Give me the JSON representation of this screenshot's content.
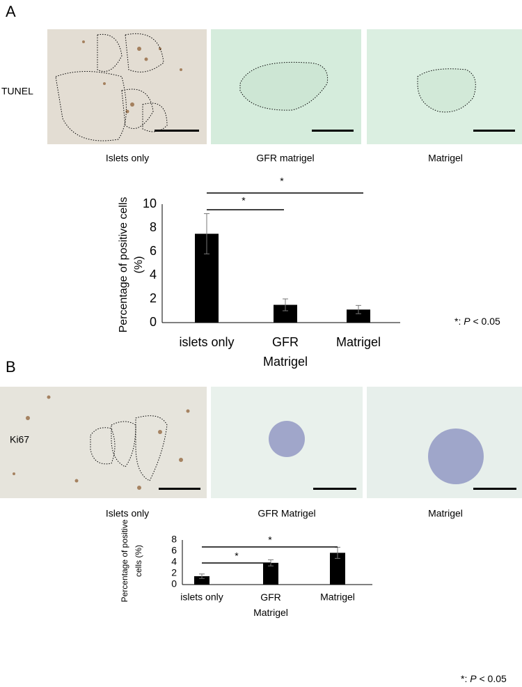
{
  "panels": [
    {
      "label": "A",
      "stain": "TUNEL",
      "captions": [
        "Islets only",
        "GFR matrigel",
        "Matrigel"
      ]
    },
    {
      "label": "B",
      "stain": "Ki67",
      "captions": [
        "Islets only",
        "GFR Matrigel",
        "Matrigel"
      ]
    }
  ],
  "chart_data": [
    {
      "type": "bar",
      "y_label": [
        "Percentage of positive cells",
        "(%)"
      ],
      "categories": [
        "islets only",
        "GFR Matrigel",
        "Matrigel"
      ],
      "values": [
        7.5,
        1.5,
        1.1
      ],
      "errors": [
        1.7,
        0.5,
        0.35
      ],
      "color": "#000000",
      "ylim": [
        0,
        10
      ],
      "yticks": [
        0,
        2,
        4,
        6,
        8,
        10
      ],
      "annotations": [
        "*",
        "*"
      ],
      "note": {
        "prefix": "*:",
        "italic": "P",
        "suffix": "< 0.05"
      }
    },
    {
      "type": "bar",
      "y_label": [
        "Percentage of positive",
        "cells (%)"
      ],
      "categories": [
        "islets only",
        "GFR Matrigel",
        "Matrigel"
      ],
      "values": [
        1.5,
        3.9,
        5.7
      ],
      "errors": [
        0.4,
        0.55,
        1.0
      ],
      "color": "#000000",
      "ylim": [
        0,
        8
      ],
      "yticks": [
        0,
        2,
        4,
        6,
        8
      ],
      "annotations": [
        "*",
        "*"
      ],
      "note": {
        "prefix": "*:",
        "italic": "P",
        "suffix": "< 0.05"
      }
    }
  ]
}
